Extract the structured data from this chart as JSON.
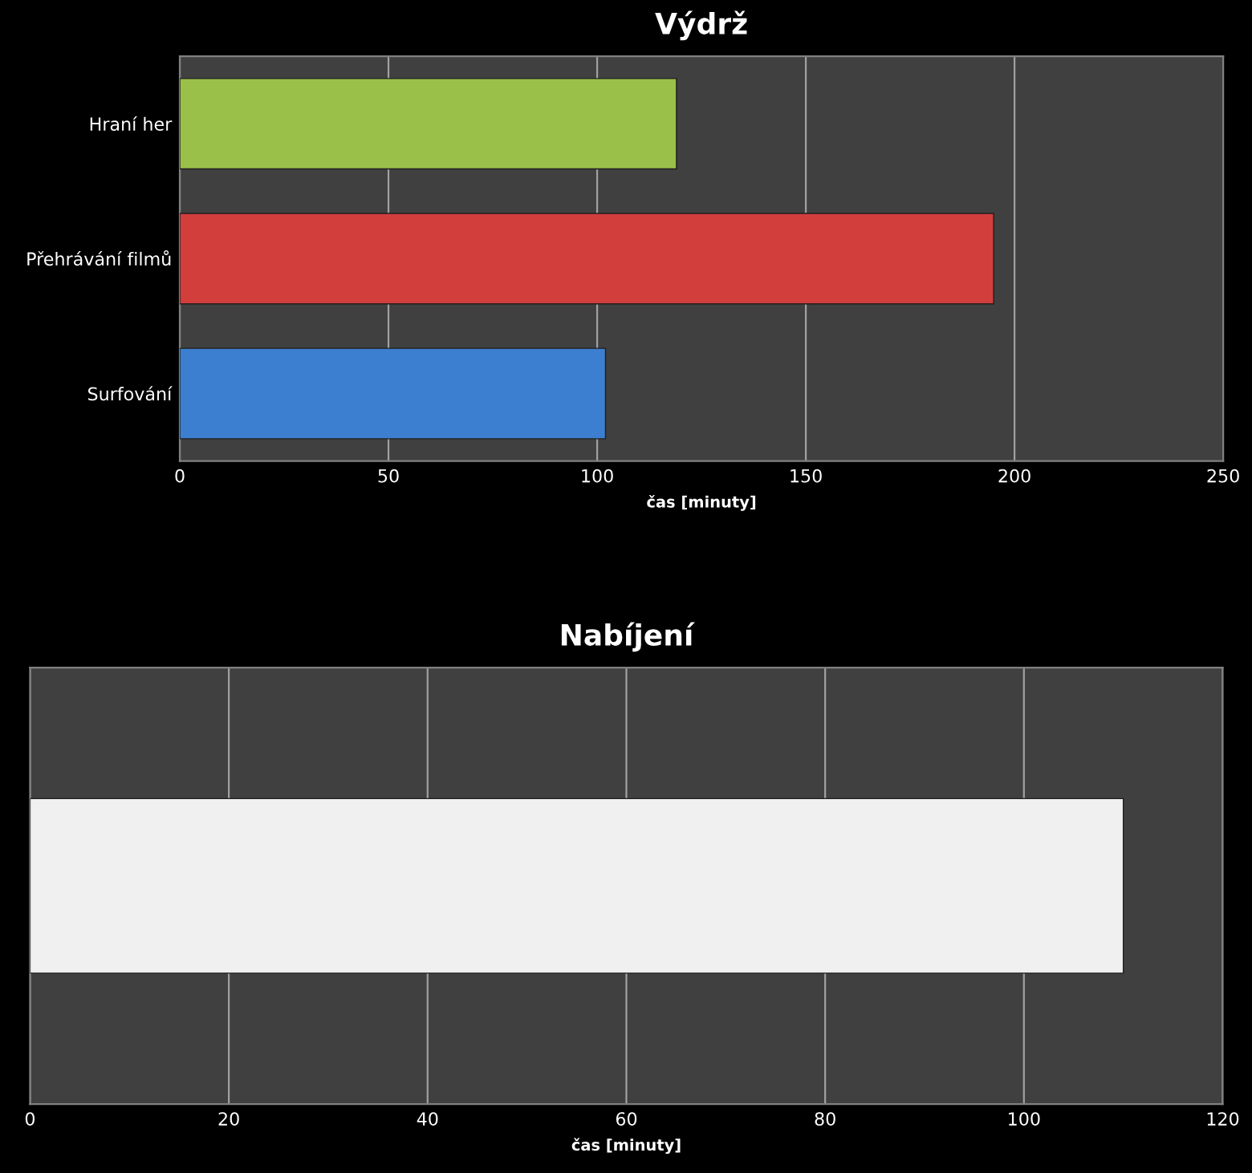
{
  "chart_data": [
    {
      "type": "bar",
      "orientation": "horizontal",
      "title": "Výdrž",
      "xlabel": "čas [minuty]",
      "categories": [
        "Hraní her",
        "Přehrávání filmů",
        "Surfování"
      ],
      "values": [
        119,
        195,
        102
      ],
      "colors": [
        "#9bc04a",
        "#d23e3c",
        "#3c7fd0"
      ],
      "xlim": [
        0,
        250
      ],
      "xticks": [
        0,
        50,
        100,
        150,
        200,
        250
      ],
      "grid": "x"
    },
    {
      "type": "bar",
      "orientation": "horizontal",
      "title": "Nabíjení",
      "xlabel": "čas [minuty]",
      "categories": [
        null
      ],
      "values": [
        110
      ],
      "colors": [
        "#f0f0f0"
      ],
      "xlim": [
        0,
        120
      ],
      "xticks": [
        0,
        20,
        40,
        60,
        80,
        100,
        120
      ],
      "grid": "x"
    }
  ]
}
